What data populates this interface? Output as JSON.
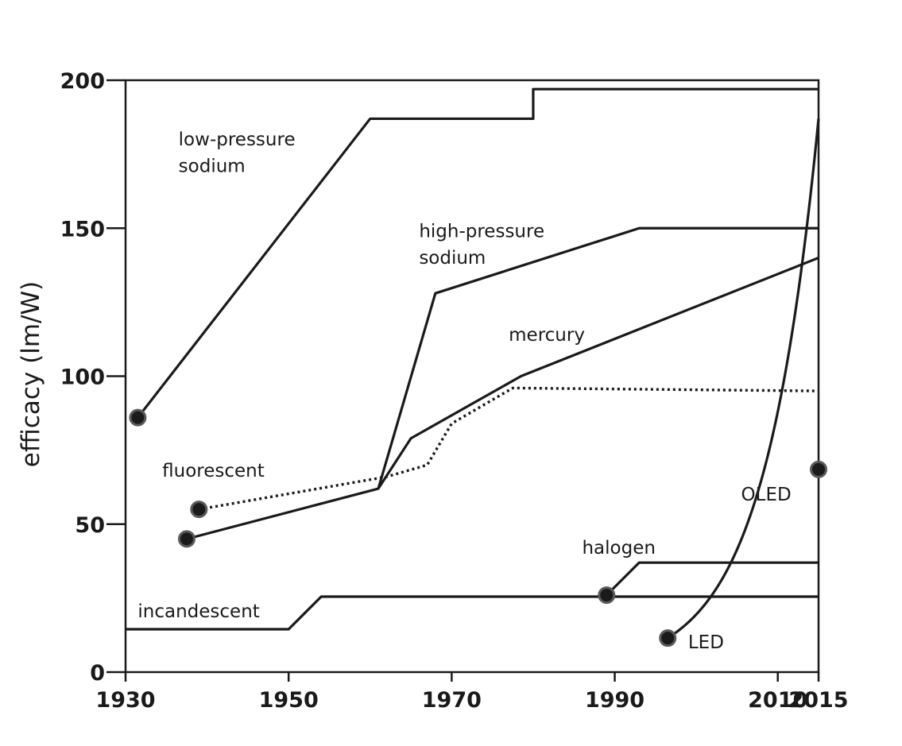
{
  "chart_data": {
    "type": "line",
    "title": "",
    "xlabel": "",
    "ylabel": "efficacy (lm/W)",
    "xlim": [
      1930,
      2015
    ],
    "ylim": [
      0,
      200
    ],
    "x_ticks": [
      1930,
      1950,
      1970,
      1990,
      2010,
      2015
    ],
    "y_ticks": [
      0,
      50,
      100,
      150,
      200
    ],
    "grid": false,
    "legend": "none",
    "series": [
      {
        "name": "low-pressure sodium",
        "style": "solid",
        "points": [
          [
            1931.5,
            86
          ],
          [
            1960,
            187
          ],
          [
            1980,
            187
          ],
          [
            1980,
            197
          ],
          [
            2015,
            197
          ]
        ],
        "start_marker": [
          1931.5,
          86
        ]
      },
      {
        "name": "high-pressure sodium",
        "style": "solid",
        "points": [
          [
            1961,
            62
          ],
          [
            1968,
            128
          ],
          [
            1993,
            150
          ],
          [
            2015,
            150
          ]
        ],
        "start_marker": null
      },
      {
        "name": "mercury",
        "style": "solid",
        "points": [
          [
            1937.5,
            45
          ],
          [
            1961,
            62
          ],
          [
            1965,
            79
          ],
          [
            1978.5,
            100
          ],
          [
            2015,
            140
          ]
        ],
        "start_marker": [
          1937.5,
          45
        ]
      },
      {
        "name": "fluorescent",
        "style": "dotted",
        "points": [
          [
            1939,
            55
          ],
          [
            1962,
            66
          ],
          [
            1967,
            70
          ],
          [
            1970,
            84
          ],
          [
            1977.5,
            96
          ],
          [
            2015,
            95
          ]
        ],
        "start_marker": [
          1939,
          55
        ]
      },
      {
        "name": "incandescent",
        "style": "solid",
        "points": [
          [
            1930,
            14.5
          ],
          [
            1950,
            14.5
          ],
          [
            1954,
            25.5
          ],
          [
            2015,
            25.5
          ]
        ],
        "start_marker": null
      },
      {
        "name": "halogen",
        "style": "solid",
        "points": [
          [
            1989,
            26
          ],
          [
            1993,
            37
          ],
          [
            2015,
            37
          ]
        ],
        "start_marker": [
          1989,
          26
        ]
      },
      {
        "name": "LED",
        "style": "solid",
        "curve": "exponential",
        "points": [
          [
            1996.5,
            11.5
          ],
          [
            2015,
            187
          ]
        ],
        "start_marker": [
          1996.5,
          11.5
        ]
      },
      {
        "name": "OLED",
        "style": "point",
        "points": [
          [
            2015,
            68.5
          ]
        ],
        "start_marker": [
          2015,
          68.5
        ]
      }
    ],
    "annotations": [
      {
        "key": "lps1",
        "text": "low-pressure",
        "x": 1936.5,
        "y": 178
      },
      {
        "key": "lps2",
        "text": "sodium",
        "x": 1936.5,
        "y": 169
      },
      {
        "key": "hps1",
        "text": "high-pressure",
        "x": 1966,
        "y": 147
      },
      {
        "key": "hps2",
        "text": "sodium",
        "x": 1966,
        "y": 138
      },
      {
        "key": "merc",
        "text": "mercury",
        "x": 1977,
        "y": 112
      },
      {
        "key": "fluo",
        "text": "fluorescent",
        "x": 1934.5,
        "y": 66
      },
      {
        "key": "halo",
        "text": "halogen",
        "x": 1986,
        "y": 40
      },
      {
        "key": "inca",
        "text": "incandescent",
        "x": 1931.5,
        "y": 18.5
      },
      {
        "key": "led",
        "text": "LED",
        "x": 1999,
        "y": 8
      },
      {
        "key": "oled",
        "text": "OLED",
        "x": 2005.5,
        "y": 58
      }
    ]
  }
}
